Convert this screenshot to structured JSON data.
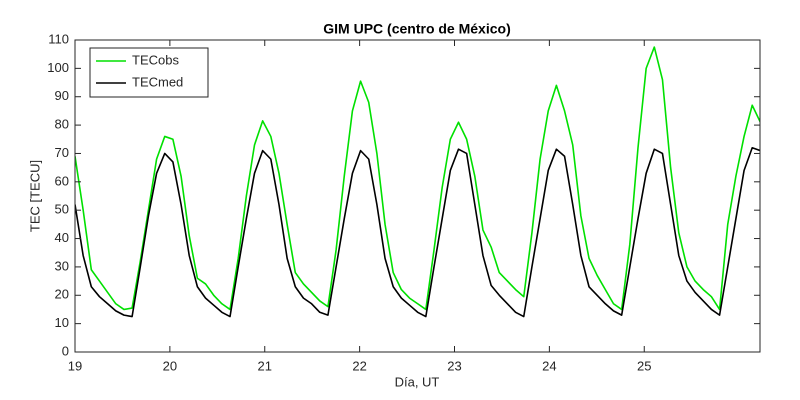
{
  "chart_data": {
    "type": "line",
    "title": "GIM UPC (centro de México)",
    "x_label": "Día, UT",
    "y_label": "TEC [TECU]",
    "xlim": [
      19,
      26.22
    ],
    "ylim": [
      0,
      110
    ],
    "xticks": [
      19,
      20,
      21,
      22,
      23,
      24,
      25
    ],
    "yticks": [
      0,
      10,
      20,
      30,
      40,
      50,
      60,
      70,
      80,
      90,
      100,
      110
    ],
    "grid": false,
    "legend": "top-left",
    "x": [
      19,
      19.086,
      19.172,
      19.258,
      19.344,
      19.43,
      19.516,
      19.602,
      19.688,
      19.774,
      19.86,
      19.946,
      20.032,
      20.118,
      20.204,
      20.29,
      20.376,
      20.462,
      20.548,
      20.634,
      20.72,
      20.806,
      20.892,
      20.978,
      21.064,
      21.15,
      21.236,
      21.322,
      21.408,
      21.494,
      21.58,
      21.666,
      21.752,
      21.838,
      21.924,
      22.01,
      22.096,
      22.182,
      22.268,
      22.354,
      22.44,
      22.526,
      22.612,
      22.698,
      22.784,
      22.87,
      22.956,
      23.042,
      23.128,
      23.214,
      23.3,
      23.386,
      23.472,
      23.558,
      23.644,
      23.73,
      23.816,
      23.902,
      23.988,
      24.074,
      24.16,
      24.246,
      24.332,
      24.418,
      24.504,
      24.59,
      24.676,
      24.762,
      24.848,
      24.934,
      25.02,
      25.106,
      25.192,
      25.278,
      25.364,
      25.45,
      25.536,
      25.622,
      25.708,
      25.794,
      25.88,
      25.966,
      26.052,
      26.138,
      26.224
    ],
    "series": [
      {
        "name": "TECobs",
        "color": "#00e000",
        "values": [
          69,
          50,
          29,
          25,
          21,
          17,
          15,
          15.5,
          32,
          50,
          68,
          76,
          75,
          62,
          41,
          26,
          24,
          20,
          17,
          15,
          33,
          55,
          73,
          81.5,
          76,
          63,
          45,
          28,
          24,
          21,
          18,
          16,
          36,
          62,
          85,
          95.5,
          88,
          70,
          45,
          28,
          22,
          19,
          17,
          15,
          36,
          58,
          75,
          81,
          75,
          62,
          43,
          37,
          28,
          25,
          22,
          19.5,
          42,
          68,
          85,
          94,
          85,
          73,
          48,
          33,
          27,
          22,
          17,
          15,
          38,
          72,
          100,
          107.5,
          96,
          65,
          42,
          30,
          25,
          22,
          19.5,
          15,
          45,
          62,
          76,
          87,
          81
        ]
      },
      {
        "name": "TECmed",
        "color": "#000000",
        "values": [
          52,
          34,
          23,
          19.5,
          17,
          14.5,
          13,
          12.5,
          30,
          48,
          63,
          70,
          67,
          52,
          34,
          23,
          19,
          16.5,
          14,
          12.5,
          30,
          47,
          63,
          71,
          68,
          52,
          33,
          23,
          19,
          17,
          14,
          13,
          30,
          47,
          63,
          71,
          68,
          52,
          33,
          23,
          19,
          16.5,
          14,
          12.5,
          30,
          47,
          64,
          71.5,
          70,
          52,
          34,
          23.5,
          20,
          17,
          14,
          12.5,
          30,
          47,
          64,
          71.5,
          69,
          52,
          34,
          23,
          20,
          17,
          14.5,
          13,
          30,
          47,
          63,
          71.5,
          70,
          52,
          34,
          25,
          21,
          18,
          15,
          13,
          30,
          47,
          64,
          72,
          71
        ]
      }
    ]
  }
}
